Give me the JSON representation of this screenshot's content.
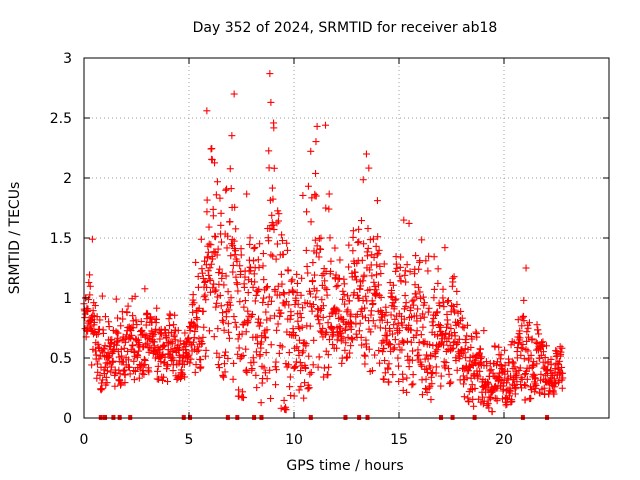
{
  "chart_data": {
    "type": "scatter",
    "title": "Day 352 of 2024, SRMTID for receiver ab18",
    "xlabel": "GPS time / hours",
    "ylabel": "SRMTID / TECUs",
    "xlim": [
      0,
      25
    ],
    "ylim": [
      0,
      3
    ],
    "xticks": [
      0,
      5,
      10,
      15,
      20
    ],
    "yticks": [
      0,
      0.5,
      1,
      1.5,
      2,
      2.5,
      3
    ],
    "xtick_labels": [
      "0",
      "5",
      "10",
      "15",
      "20"
    ],
    "ytick_labels": [
      "0",
      "0.5",
      "1",
      "1.5",
      "2",
      "2.5",
      "3"
    ],
    "grid": true,
    "marker": "+",
    "color": "#ff0000",
    "series": [
      {
        "name": "SRMTID",
        "x_range_hours": [
          0,
          22.8
        ],
        "sample_interval_hours": 0.0125,
        "notable_points": [
          {
            "x": 8.85,
            "y": 2.87
          },
          {
            "x": 8.9,
            "y": 2.63
          },
          {
            "x": 7.15,
            "y": 2.7
          },
          {
            "x": 5.85,
            "y": 2.56
          },
          {
            "x": 11.5,
            "y": 2.44
          },
          {
            "x": 11.1,
            "y": 2.43
          },
          {
            "x": 13.45,
            "y": 2.2
          },
          {
            "x": 0.4,
            "y": 1.49
          },
          {
            "x": 21.05,
            "y": 1.25
          }
        ],
        "envelope": [
          {
            "x": 0.0,
            "low": 0.55,
            "high": 1.2
          },
          {
            "x": 0.5,
            "low": 0.3,
            "high": 1.49
          },
          {
            "x": 1.0,
            "low": 0.2,
            "high": 0.9
          },
          {
            "x": 2.0,
            "low": 0.3,
            "high": 1.1
          },
          {
            "x": 3.0,
            "low": 0.35,
            "high": 1.15
          },
          {
            "x": 4.0,
            "low": 0.3,
            "high": 1.0
          },
          {
            "x": 5.0,
            "low": 0.35,
            "high": 0.95
          },
          {
            "x": 5.5,
            "low": 0.4,
            "high": 1.6
          },
          {
            "x": 6.0,
            "low": 0.6,
            "high": 2.56
          },
          {
            "x": 7.0,
            "low": 0.2,
            "high": 2.7
          },
          {
            "x": 8.0,
            "low": 0.15,
            "high": 1.7
          },
          {
            "x": 9.0,
            "low": 0.1,
            "high": 2.87
          },
          {
            "x": 10.0,
            "low": 0.05,
            "high": 1.45
          },
          {
            "x": 11.0,
            "low": 0.3,
            "high": 2.44
          },
          {
            "x": 12.0,
            "low": 0.4,
            "high": 1.6
          },
          {
            "x": 13.0,
            "low": 0.6,
            "high": 1.8
          },
          {
            "x": 13.5,
            "low": 0.4,
            "high": 2.2
          },
          {
            "x": 14.5,
            "low": 0.3,
            "high": 1.4
          },
          {
            "x": 15.5,
            "low": 0.2,
            "high": 1.85
          },
          {
            "x": 16.5,
            "low": 0.15,
            "high": 1.3
          },
          {
            "x": 17.5,
            "low": 0.3,
            "high": 1.6
          },
          {
            "x": 18.5,
            "low": 0.1,
            "high": 0.9
          },
          {
            "x": 19.5,
            "low": 0.05,
            "high": 0.75
          },
          {
            "x": 20.5,
            "low": 0.15,
            "high": 0.7
          },
          {
            "x": 21.0,
            "low": 0.15,
            "high": 1.25
          },
          {
            "x": 22.0,
            "low": 0.2,
            "high": 0.8
          },
          {
            "x": 22.8,
            "low": 0.2,
            "high": 0.6
          }
        ]
      }
    ],
    "zero_markers_x": [
      0.8,
      1.0,
      1.4,
      1.7,
      2.2,
      4.75,
      5.05,
      6.85,
      7.3,
      8.1,
      8.45,
      10.8,
      12.45,
      13.1,
      13.5,
      17.0,
      17.55,
      18.6,
      20.9,
      22.05
    ]
  }
}
